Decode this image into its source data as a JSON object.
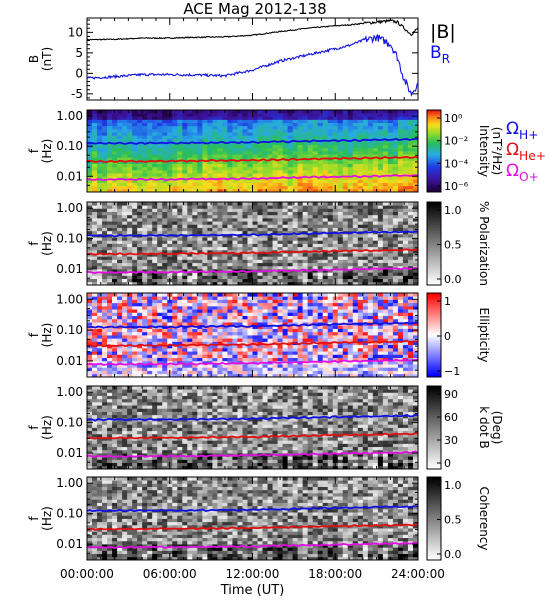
{
  "title": "ACE Mag 2012-138",
  "colors": {
    "bmag": "#000000",
    "br": "#1010e0",
    "oh": "#1010e0",
    "ohe": "#e01010",
    "oo": "#e010e0"
  },
  "x_axis": {
    "tick_labels": [
      "00:00:00",
      "06:00:00",
      "12:00:00",
      "18:00:00",
      "24:00:00"
    ],
    "label": "Time (UT)",
    "range_hours": [
      0,
      24
    ]
  },
  "freq_axis": {
    "tick_labels": [
      "1.00",
      "0.10",
      "0.01"
    ]
  },
  "panels": [
    {
      "id": "mag",
      "ylabel": "B\n(nT)",
      "tick_labels": [
        "10",
        "5",
        "0",
        "-5"
      ],
      "legend": [
        {
          "text": "|B|",
          "color_key": "bmag"
        },
        {
          "text": "B",
          "sub": "R",
          "color_key": "br"
        }
      ]
    },
    {
      "id": "intensity",
      "ylabel": "f\n(Hz)",
      "colorbar": {
        "type": "rainbow",
        "label": "Intensity\n(nT²/Hz)",
        "tick_labels": [
          "10⁰",
          "10⁻²",
          "10⁻⁴",
          "10⁻⁶"
        ],
        "extra_ticks": [
          "10⁻²",
          "10⁻⁴"
        ]
      },
      "side_labels": [
        {
          "text": "Ω",
          "sub": "H+",
          "color_key": "oh"
        },
        {
          "text": "Ω",
          "sub": "He+",
          "color_key": "ohe"
        },
        {
          "text": "Ω",
          "sub": "O+",
          "color_key": "oo"
        }
      ]
    },
    {
      "id": "polarization",
      "ylabel": "f\n(Hz)",
      "colorbar": {
        "type": "gray",
        "label": "% Polarization",
        "tick_labels": [
          "1.0",
          "0.5",
          "0.0"
        ]
      }
    },
    {
      "id": "ellipticity",
      "ylabel": "f\n(Hz)",
      "colorbar": {
        "type": "bwr",
        "label": "Ellipticity",
        "tick_labels": [
          "1",
          "0",
          "−1"
        ]
      }
    },
    {
      "id": "kdotb",
      "ylabel": "f\n(Hz)",
      "colorbar": {
        "type": "gray",
        "label": "k dot B\n(Deg)",
        "tick_labels": [
          "90",
          "60",
          "30",
          "0"
        ]
      }
    },
    {
      "id": "coherency",
      "ylabel": "f\n(Hz)",
      "colorbar": {
        "type": "gray",
        "label": "Coherency",
        "tick_labels": [
          "1.0",
          "0.5",
          "0.0"
        ]
      }
    }
  ],
  "chart_data": [
    {
      "type": "line",
      "title": "ACE Mag 2012-138",
      "xlabel": "Time (UT)",
      "ylabel": "B (nT)",
      "ylim": [
        -6.5,
        13.5
      ],
      "x": [
        0,
        2,
        4,
        6,
        8,
        10,
        12,
        14,
        16,
        18,
        19,
        20,
        21,
        22,
        22.5,
        23,
        23.5,
        24
      ],
      "series": [
        {
          "name": "|B|",
          "values": [
            8.2,
            8.3,
            8.6,
            8.6,
            8.8,
            8.9,
            9.3,
            10.2,
            11.0,
            11.6,
            11.8,
            12.2,
            12.5,
            12.8,
            12.5,
            11.0,
            9.5,
            11.0
          ]
        },
        {
          "name": "BR",
          "values": [
            -1.2,
            -0.8,
            -0.3,
            -0.3,
            -0.4,
            -0.6,
            0.8,
            3.0,
            4.5,
            6.0,
            6.8,
            8.0,
            8.8,
            7.2,
            4.0,
            -1.5,
            -5.0,
            -2.5
          ]
        }
      ]
    },
    {
      "type": "heatmap",
      "name": "Intensity",
      "xlabel": "Time (UT)",
      "ylabel": "f (Hz)",
      "zlabel": "Intensity (nT²/Hz)",
      "y_scale": "log",
      "ylim": [
        0.003,
        1.6
      ],
      "zlim": [
        1e-06,
        1
      ],
      "x": [
        0,
        6,
        12,
        18,
        24
      ],
      "gyrofrequency_lines": [
        {
          "name": "ΩH+",
          "values": [
            0.125,
            0.127,
            0.134,
            0.154,
            0.171
          ]
        },
        {
          "name": "ΩHe+",
          "values": [
            0.031,
            0.032,
            0.034,
            0.039,
            0.043
          ]
        },
        {
          "name": "ΩO+",
          "values": [
            0.0078,
            0.0079,
            0.0084,
            0.0096,
            0.0107
          ]
        }
      ]
    },
    {
      "type": "heatmap",
      "name": "% Polarization",
      "y_scale": "log",
      "ylim": [
        0.003,
        1.6
      ],
      "zlim": [
        0,
        1
      ]
    },
    {
      "type": "heatmap",
      "name": "Ellipticity",
      "y_scale": "log",
      "ylim": [
        0.003,
        1.6
      ],
      "zlim": [
        -1,
        1
      ]
    },
    {
      "type": "heatmap",
      "name": "k dot B (Deg)",
      "y_scale": "log",
      "ylim": [
        0.003,
        1.6
      ],
      "zlim": [
        0,
        90
      ]
    },
    {
      "type": "heatmap",
      "name": "Coherency",
      "y_scale": "log",
      "ylim": [
        0.003,
        1.6
      ],
      "zlim": [
        0,
        1
      ]
    }
  ]
}
